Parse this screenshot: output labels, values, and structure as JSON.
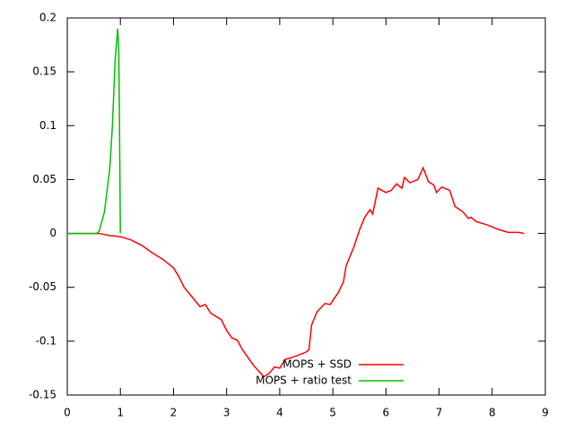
{
  "chart_data": {
    "type": "line",
    "xlim": [
      0,
      9
    ],
    "xticks": [
      0,
      1,
      2,
      3,
      4,
      5,
      6,
      7,
      8,
      9
    ],
    "ylim": [
      -0.15,
      0.2
    ],
    "yticks": [
      -0.15,
      -0.1,
      -0.05,
      0,
      0.05,
      0.1,
      0.15,
      0.2
    ],
    "legend": "bottom-right",
    "series": [
      {
        "name": "MOPS + SSD",
        "color": "#ff0000",
        "x": [
          0,
          0.6,
          0.8,
          1.0,
          1.2,
          1.4,
          1.6,
          1.8,
          2.0,
          2.1,
          2.2,
          2.4,
          2.5,
          2.6,
          2.7,
          2.9,
          3.0,
          3.1,
          3.2,
          3.3,
          3.5,
          3.7,
          3.8,
          3.9,
          4.0,
          4.1,
          4.3,
          4.5,
          4.55,
          4.6,
          4.7,
          4.85,
          4.95,
          5.1,
          5.2,
          5.25,
          5.4,
          5.5,
          5.6,
          5.7,
          5.75,
          5.85,
          6.0,
          6.1,
          6.2,
          6.3,
          6.35,
          6.45,
          6.6,
          6.7,
          6.8,
          6.9,
          6.95,
          7.05,
          7.2,
          7.3,
          7.45,
          7.55,
          7.6,
          7.7,
          7.9,
          8.1,
          8.3,
          8.5,
          8.6
        ],
        "values": [
          0,
          0,
          -0.002,
          -0.003,
          -0.006,
          -0.011,
          -0.018,
          -0.024,
          -0.032,
          -0.04,
          -0.05,
          -0.062,
          -0.068,
          -0.066,
          -0.074,
          -0.08,
          -0.09,
          -0.097,
          -0.099,
          -0.108,
          -0.122,
          -0.133,
          -0.13,
          -0.124,
          -0.125,
          -0.117,
          -0.114,
          -0.11,
          -0.108,
          -0.085,
          -0.073,
          -0.065,
          -0.066,
          -0.055,
          -0.045,
          -0.03,
          -0.012,
          0.003,
          0.015,
          0.022,
          0.018,
          0.042,
          0.038,
          0.04,
          0.046,
          0.042,
          0.052,
          0.047,
          0.05,
          0.061,
          0.048,
          0.045,
          0.038,
          0.043,
          0.04,
          0.025,
          0.02,
          0.014,
          0.015,
          0.011,
          0.008,
          0.004,
          0.001,
          0.001,
          0
        ]
      },
      {
        "name": "MOPS + ratio test",
        "color": "#00c000",
        "x": [
          0,
          0.55,
          0.6,
          0.7,
          0.75,
          0.8,
          0.85,
          0.9,
          0.95,
          0.97,
          0.98,
          1.0
        ],
        "values": [
          0,
          0,
          0.002,
          0.02,
          0.04,
          0.06,
          0.1,
          0.16,
          0.19,
          0.17,
          0.12,
          0
        ]
      }
    ]
  }
}
